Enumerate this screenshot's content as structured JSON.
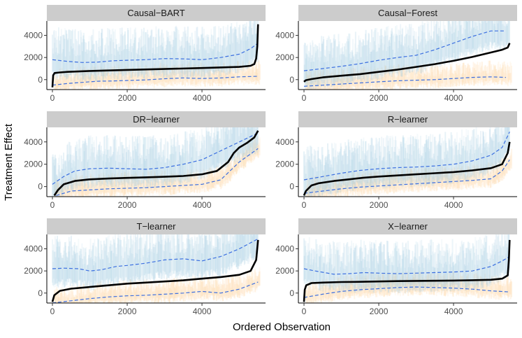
{
  "chart_data": {
    "type": "line",
    "title": "",
    "xlabel": "Ordered Observation",
    "ylabel": "Treatment Effect",
    "xlim": [
      -150,
      5700
    ],
    "ylim": [
      -900,
      5300
    ],
    "x_ticks": [
      0,
      2000,
      4000
    ],
    "y_ticks": [
      0,
      2000,
      4000
    ],
    "x_tick_labels": [
      "0",
      "2000",
      "4000"
    ],
    "y_tick_labels": [
      "0",
      "2000",
      "4000"
    ],
    "colors": {
      "strip_bg": "#cccccc",
      "estimate_line": "#000000",
      "bound_line": "#3b6fe0",
      "upper_band": "#9ecae1",
      "lower_band": "#fdd49e"
    },
    "panels": [
      {
        "title": "Causal−BART",
        "estimate": {
          "x": [
            0,
            20,
            60,
            200,
            400,
            1000,
            2000,
            3000,
            4000,
            5000,
            5300,
            5400,
            5450,
            5480,
            5500
          ],
          "y": [
            -700,
            400,
            600,
            650,
            700,
            780,
            880,
            960,
            1050,
            1150,
            1250,
            1400,
            1900,
            3000,
            5000
          ]
        },
        "upper": {
          "x": [
            0,
            400,
            800,
            1200,
            1600,
            2000,
            2500,
            3000,
            3500,
            4000,
            4500,
            5000,
            5300,
            5500
          ],
          "y": [
            1800,
            1650,
            1550,
            1580,
            1700,
            1750,
            1800,
            1900,
            1880,
            1800,
            2000,
            2300,
            2800,
            3300
          ]
        },
        "lower": {
          "x": [
            0,
            400,
            800,
            1200,
            1600,
            2000,
            2500,
            3000,
            3500,
            4000,
            4500,
            5000,
            5500
          ],
          "y": [
            -500,
            -350,
            -250,
            -150,
            -120,
            -80,
            -30,
            80,
            150,
            100,
            150,
            250,
            300
          ]
        }
      },
      {
        "title": "Causal−Forest",
        "estimate": {
          "x": [
            0,
            50,
            200,
            500,
            1000,
            1500,
            2000,
            2500,
            3000,
            3500,
            4000,
            4500,
            5000,
            5300,
            5450,
            5500
          ],
          "y": [
            -200,
            -50,
            50,
            200,
            350,
            500,
            700,
            900,
            1150,
            1400,
            1700,
            2050,
            2450,
            2700,
            2900,
            3300
          ]
        },
        "upper": {
          "x": [
            0,
            500,
            1000,
            1500,
            2000,
            2500,
            3000,
            3500,
            4000,
            4500,
            5000,
            5400
          ],
          "y": [
            800,
            1000,
            1200,
            1450,
            1750,
            2000,
            2200,
            2700,
            3300,
            3900,
            4400,
            4400
          ]
        },
        "lower": {
          "x": [
            0,
            500,
            1000,
            1500,
            2000,
            2500,
            3000,
            3500,
            4000,
            4500,
            5000,
            5400
          ],
          "y": [
            -600,
            -500,
            -400,
            -300,
            -200,
            -100,
            -50,
            0,
            100,
            200,
            250,
            200
          ]
        }
      },
      {
        "title": "DR−learner",
        "estimate": {
          "x": [
            50,
            150,
            300,
            600,
            1000,
            1500,
            2000,
            2500,
            3000,
            3500,
            4000,
            4400,
            4700,
            4850,
            5000,
            5200,
            5400,
            5500
          ],
          "y": [
            -800,
            -300,
            200,
            500,
            650,
            720,
            780,
            830,
            880,
            950,
            1100,
            1400,
            2200,
            3000,
            3500,
            3900,
            4400,
            5000
          ]
        },
        "upper": {
          "x": [
            0,
            300,
            600,
            1000,
            1500,
            2000,
            2500,
            3000,
            3500,
            4000,
            4500,
            5000,
            5500
          ],
          "y": [
            200,
            900,
            1400,
            1600,
            1650,
            1600,
            1550,
            1700,
            2000,
            2400,
            3200,
            4000,
            4800
          ]
        },
        "lower": {
          "x": [
            100,
            500,
            1000,
            1500,
            2000,
            2500,
            3000,
            3500,
            4000,
            4500,
            5000,
            5500
          ],
          "y": [
            -800,
            -400,
            -300,
            -200,
            -150,
            -100,
            0,
            100,
            200,
            600,
            2200,
            3400
          ]
        }
      },
      {
        "title": "R−learner",
        "estimate": {
          "x": [
            0,
            50,
            200,
            400,
            800,
            1200,
            1600,
            2000,
            2500,
            3000,
            3500,
            4000,
            4500,
            5000,
            5300,
            5450,
            5500
          ],
          "y": [
            -800,
            -400,
            100,
            300,
            500,
            650,
            800,
            900,
            1000,
            1100,
            1200,
            1300,
            1450,
            1650,
            2000,
            3000,
            4000
          ]
        },
        "upper": {
          "x": [
            0,
            500,
            1000,
            1500,
            2000,
            2500,
            3000,
            3500,
            4000,
            4500,
            5000,
            5300,
            5500
          ],
          "y": [
            600,
            900,
            1200,
            1450,
            1600,
            1700,
            1750,
            1850,
            2000,
            2300,
            2800,
            3500,
            4900
          ]
        },
        "lower": {
          "x": [
            0,
            500,
            1000,
            1500,
            2000,
            2500,
            3000,
            3500,
            4000,
            4500,
            5000,
            5300,
            5500
          ],
          "y": [
            -600,
            -400,
            -200,
            -50,
            50,
            150,
            250,
            350,
            450,
            550,
            700,
            1400,
            2400
          ]
        }
      },
      {
        "title": "T−learner",
        "estimate": {
          "x": [
            0,
            50,
            200,
            500,
            1000,
            1500,
            2000,
            2500,
            3000,
            3500,
            4000,
            4500,
            5000,
            5300,
            5450,
            5500
          ],
          "y": [
            -800,
            -200,
            200,
            400,
            550,
            700,
            850,
            950,
            1050,
            1150,
            1300,
            1450,
            1650,
            2000,
            3000,
            4800
          ]
        },
        "upper": {
          "x": [
            0,
            300,
            700,
            1000,
            1300,
            1700,
            2000,
            2500,
            3000,
            3500,
            4000,
            4500,
            5000,
            5500
          ],
          "y": [
            2200,
            2250,
            2200,
            2000,
            2100,
            2400,
            2500,
            2700,
            3000,
            3100,
            2900,
            3300,
            4000,
            4900
          ]
        },
        "lower": {
          "x": [
            0,
            500,
            1000,
            1500,
            2000,
            2500,
            3000,
            3500,
            4000,
            4500,
            5000,
            5500
          ],
          "y": [
            -900,
            -700,
            -500,
            -350,
            -250,
            -200,
            -100,
            0,
            150,
            0,
            350,
            1000
          ]
        }
      },
      {
        "title": "X−learner",
        "estimate": {
          "x": [
            0,
            20,
            60,
            200,
            500,
            1000,
            1500,
            2000,
            2500,
            3000,
            3500,
            4000,
            4500,
            5000,
            5300,
            5450,
            5480,
            5500
          ],
          "y": [
            -800,
            300,
            700,
            900,
            950,
            1000,
            1020,
            1050,
            1080,
            1100,
            1110,
            1130,
            1160,
            1200,
            1300,
            1600,
            3000,
            4800
          ]
        },
        "upper": {
          "x": [
            0,
            300,
            800,
            1200,
            1600,
            2000,
            2500,
            3000,
            3500,
            4000,
            4500,
            5000,
            5300,
            5500
          ],
          "y": [
            2200,
            2000,
            1700,
            1750,
            1850,
            1800,
            1750,
            1800,
            1850,
            1900,
            2000,
            2400,
            2900,
            3300
          ]
        },
        "lower": {
          "x": [
            0,
            500,
            1000,
            1500,
            2000,
            2500,
            3000,
            3500,
            4000,
            4500,
            5000,
            5500
          ],
          "y": [
            -400,
            -100,
            150,
            300,
            400,
            500,
            550,
            500,
            450,
            350,
            200,
            100
          ]
        }
      }
    ]
  }
}
